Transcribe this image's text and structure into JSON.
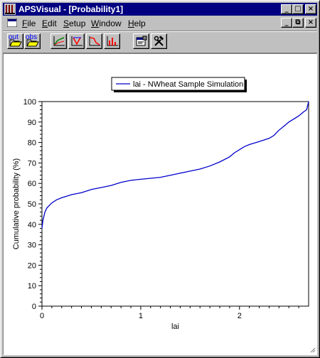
{
  "window": {
    "title": "APSVisual - [Probability1]",
    "controls": {
      "minimize": "_",
      "maximize": "□",
      "close": "×"
    }
  },
  "menu": {
    "items": [
      {
        "label": "File",
        "key": "F",
        "rest": "ile"
      },
      {
        "label": "Edit",
        "key": "E",
        "rest": "dit"
      },
      {
        "label": "Setup",
        "key": "S",
        "rest": "etup"
      },
      {
        "label": "Window",
        "key": "W",
        "rest": "indow"
      },
      {
        "label": "Help",
        "key": "H",
        "rest": "elp"
      }
    ],
    "mdi_controls": {
      "minimize": "_",
      "restore": "⧉",
      "close": "×"
    }
  },
  "toolbar": {
    "out_label": "out",
    "obs_label": "obs"
  },
  "colors": {
    "series": "#0000cc",
    "titlebar": "#000080"
  },
  "chart_data": {
    "type": "line",
    "title": "",
    "xlabel": "lai",
    "ylabel": "Cumulative probability (%)",
    "xlim": [
      0,
      2.7
    ],
    "ylim": [
      0,
      100
    ],
    "x_ticks": [
      0,
      1,
      2
    ],
    "y_ticks": [
      0,
      10,
      20,
      30,
      40,
      50,
      60,
      70,
      80,
      90,
      100
    ],
    "legend": {
      "position": "top-center"
    },
    "series": [
      {
        "name": "lai - NWheat Sample Simulation",
        "x": [
          0.0,
          0.005,
          0.01,
          0.02,
          0.03,
          0.05,
          0.08,
          0.1,
          0.15,
          0.2,
          0.3,
          0.4,
          0.5,
          0.6,
          0.7,
          0.8,
          0.9,
          1.0,
          1.1,
          1.2,
          1.3,
          1.4,
          1.5,
          1.6,
          1.7,
          1.8,
          1.9,
          1.95,
          2.0,
          2.05,
          2.1,
          2.2,
          2.3,
          2.35,
          2.4,
          2.45,
          2.5,
          2.6,
          2.65,
          2.68,
          2.7
        ],
        "y": [
          38,
          40,
          42,
          44,
          46,
          48,
          49.5,
          50.5,
          52,
          53,
          54.5,
          55.5,
          57,
          58,
          59,
          60.5,
          61.5,
          62,
          62.5,
          63,
          64,
          65,
          66,
          67,
          68.5,
          70.5,
          73,
          75,
          76.5,
          78,
          79,
          80.5,
          82,
          83.5,
          86,
          88,
          90,
          93,
          95,
          96,
          100
        ]
      }
    ]
  }
}
